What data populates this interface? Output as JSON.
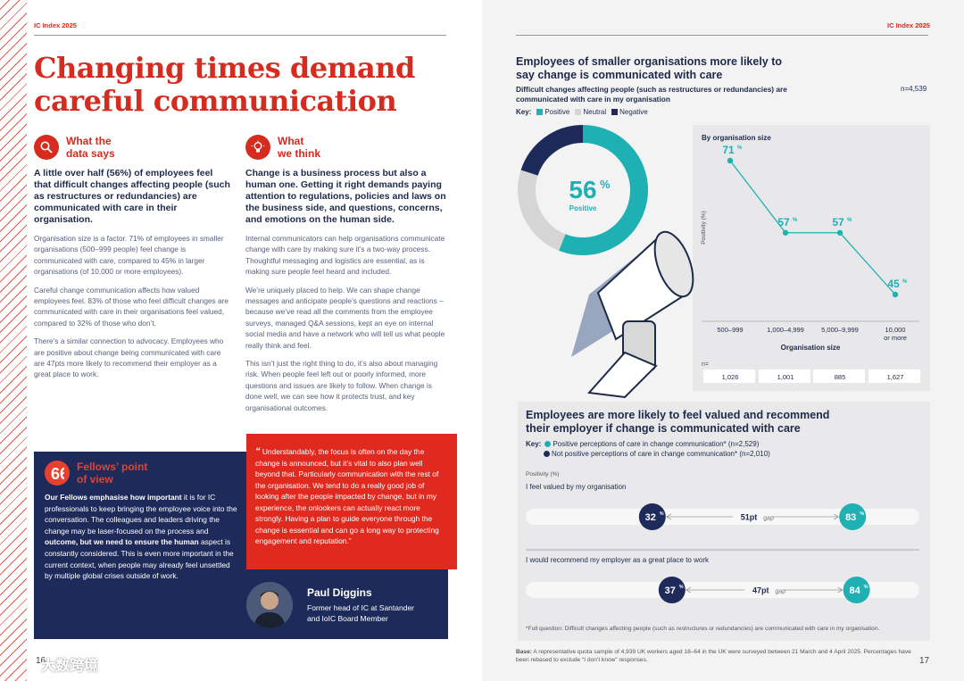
{
  "left": {
    "running_head": "IC Index 2025",
    "title": "Changing times demand careful communication",
    "col1": {
      "icon": "magnifier-icon",
      "title": "What the\ndata says",
      "lead": "A little over half (56%) of employees feel that difficult changes affecting people (such as restructures or redundancies) are communicated with care in their organisation.",
      "paras": [
        "Organisation size is a factor. 71% of employees in smaller organisations (500–999 people) feel change is communicated with care, compared to 45% in larger organisations (of 10,000 or more employees).",
        "Careful change communication affects how valued employees feel. 83% of those who feel difficult changes are communicated with care in their organisations feel valued, compared to 32% of those who don’t.",
        "There’s a similar connection to advocacy. Employees who are positive about change being communicated with care are 47pts more likely to recommend their employer as a great place to work."
      ]
    },
    "col2": {
      "icon": "lightbulb-icon",
      "title": "What\nwe think",
      "lead": "Change is a business process but also a human one. Getting it right demands paying attention to regulations, policies and laws on the business side, and questions, concerns, and emotions on the human side.",
      "paras": [
        "Internal communicators can help organisations communicate change with care by making sure it’s a two-way process. Thoughtful messaging and logistics are essential, as is making sure people feel heard and included.",
        "We’re uniquely placed to help. We can shape change messages and anticipate people’s questions and reactions – because we’ve read all the comments from the employee surveys, managed Q&A sessions, kept an eye on internal social media and have a network who will tell us what people really think and feel.",
        "This isn’t just the right thing to do, it’s also about managing risk. When people feel left out or poorly informed, more questions and issues are likely to follow. When change is done well, we can see how it protects trust, and key organisational outcomes."
      ]
    },
    "fellows": {
      "icon": "quote-mark-icon",
      "title": "Fellows’ point\nof view",
      "b1": "Our Fellows emphasise how important",
      "t1": " it is for IC professionals to keep bringing the employee voice into the conversation. The colleagues and leaders driving the change may be laser-focused on the process and ",
      "b2": "outcome, but we need to ensure the human",
      "t2": " aspect is constantly considered. This is even more important in the current context, when people may already feel unsettled by multiple global crises outside of work."
    },
    "quote": {
      "text": "Understandably, the focus is often on the day the change is announced, but it’s vital to also plan well beyond that. Particularly communication with the rest of the organisation. We tend to do a really good job of looking after the people impacted by change, but in my experience, the onlookers can actually react more strongly. Having a plan to guide everyone through the change is essential and can go a long way to protecting engagement and reputation.”",
      "name": "Paul Diggins",
      "role1": "Former head of IC at Santander",
      "role2": "and IoIC Board Member"
    },
    "page_number": "16",
    "watermark": "大数跨境"
  },
  "right": {
    "running_head": "IC Index 2025",
    "h1": "Employees of smaller organisations more likely to say change is communicated with care",
    "sub": "Difficult changes affecting people (such as restructures or redundancies) are communicated with care in my organisation",
    "n": "n=4,539",
    "key_label": "Key:",
    "key": [
      "Positive",
      "Neutral",
      "Negative"
    ],
    "donut_value": "56",
    "donut_label": "Positive",
    "size_title": "By organisation size",
    "y_axis_label": "Positivity (%)",
    "x_axis_title": "Organisation size",
    "n_label": "n=",
    "h2": "Employees are more likely to feel valued and recommend their employer if change is communicated with care",
    "key2": [
      "Positive perceptions of care in change communication* (n=2,529)",
      "Not positive perceptions of care in change communication* (n=2,010)"
    ],
    "positivity_label": "Positivity (%)",
    "footnote_q": "*Full question: Difficult changes affecting people (such as restructures or redundancies) are communicated with care in my organisation.",
    "base_bold": "Base:",
    "base_text": " A representative quota sample of 4,939 UK workers aged 18–64 in the UK were surveyed between 21 March and 4 April 2025. Percentages have been rebased to exclude “I don’t know” responses.",
    "page_number": "17"
  },
  "colors": {
    "red": "#d62b1f",
    "navy": "#1e2a5a",
    "teal": "#1fb0b3",
    "gray": "#d5d5d5"
  },
  "chart_data": [
    {
      "type": "pie",
      "title": "",
      "slices": [
        {
          "name": "Positive",
          "value": 56
        },
        {
          "name": "Neutral",
          "value": 24
        },
        {
          "name": "Negative",
          "value": 20
        }
      ],
      "center_text": "56% Positive"
    },
    {
      "type": "line",
      "title": "By organisation size",
      "xlabel": "Organisation size",
      "ylabel": "Positivity (%)",
      "categories": [
        "500–999",
        "1,000–4,999",
        "5,000–9,999",
        "10,000\nor more"
      ],
      "values": [
        71,
        57,
        57,
        45
      ],
      "n": [
        "1,026",
        "1,001",
        "885",
        "1,627"
      ]
    },
    {
      "type": "scatter",
      "title": "",
      "ylabel": "Positivity (%)",
      "rows": [
        {
          "label": "I feel valued by my organisation",
          "not_positive": 32,
          "positive": 83,
          "gap": "51pt"
        },
        {
          "label": "I would recommend my employer as a great place to work",
          "not_positive": 37,
          "positive": 84,
          "gap": "47pt"
        }
      ],
      "gap_word": "gap"
    }
  ]
}
